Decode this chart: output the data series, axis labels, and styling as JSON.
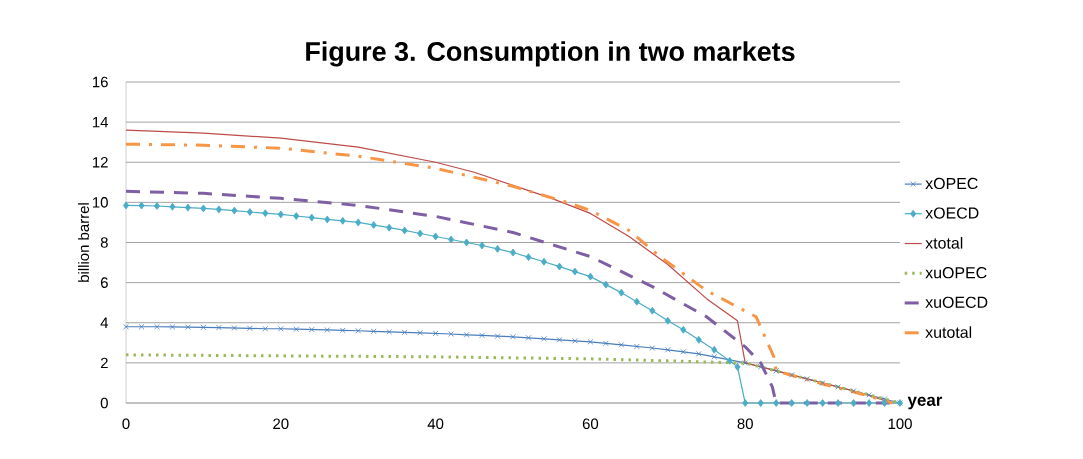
{
  "chart_data": {
    "type": "line",
    "title": "Figure 3. Consumption in two markets",
    "xlabel": "year",
    "ylabel": "billion barrel",
    "xlim": [
      0,
      100
    ],
    "xticks": [
      0,
      20,
      40,
      60,
      80,
      100
    ],
    "ylim": [
      0,
      16
    ],
    "yticks": [
      0,
      2,
      4,
      6,
      8,
      10,
      12,
      14,
      16
    ],
    "grid": "y",
    "legend": "right",
    "series": [
      {
        "name": "xOPEC",
        "color": "#4a7ebb",
        "marker": "cross",
        "line_style": "solid",
        "x": [
          0,
          2,
          4,
          6,
          8,
          10,
          12,
          14,
          16,
          18,
          20,
          22,
          24,
          26,
          28,
          30,
          32,
          34,
          36,
          38,
          40,
          42,
          44,
          46,
          48,
          50,
          52,
          54,
          56,
          58,
          60,
          62,
          64,
          66,
          68,
          70,
          72,
          74,
          76,
          80,
          82,
          84,
          86,
          88,
          90,
          92,
          94,
          96,
          98,
          100
        ],
        "values": [
          3.8,
          3.8,
          3.8,
          3.79,
          3.78,
          3.77,
          3.76,
          3.74,
          3.72,
          3.7,
          3.7,
          3.68,
          3.66,
          3.64,
          3.62,
          3.6,
          3.57,
          3.55,
          3.52,
          3.5,
          3.47,
          3.44,
          3.4,
          3.37,
          3.33,
          3.3,
          3.25,
          3.2,
          3.15,
          3.1,
          3.05,
          2.97,
          2.9,
          2.82,
          2.74,
          2.65,
          2.55,
          2.45,
          2.3,
          2.0,
          1.8,
          1.6,
          1.4,
          1.2,
          1.0,
          0.8,
          0.6,
          0.4,
          0.2,
          0
        ]
      },
      {
        "name": "xOECD",
        "color": "#4bacc6",
        "marker": "diamond",
        "line_style": "solid",
        "x": [
          0,
          2,
          4,
          6,
          8,
          10,
          12,
          14,
          16,
          18,
          20,
          22,
          24,
          26,
          28,
          30,
          32,
          34,
          36,
          38,
          40,
          42,
          44,
          46,
          48,
          50,
          52,
          54,
          56,
          58,
          60,
          62,
          64,
          66,
          68,
          70,
          72,
          74,
          76,
          78,
          79,
          80,
          82,
          84,
          86,
          88,
          90,
          92,
          94,
          96,
          98,
          100
        ],
        "values": [
          9.85,
          9.84,
          9.82,
          9.78,
          9.74,
          9.7,
          9.65,
          9.59,
          9.52,
          9.46,
          9.4,
          9.32,
          9.24,
          9.15,
          9.08,
          9.0,
          8.87,
          8.74,
          8.6,
          8.45,
          8.3,
          8.15,
          8.0,
          7.85,
          7.68,
          7.5,
          7.27,
          7.04,
          6.8,
          6.55,
          6.3,
          5.9,
          5.5,
          5.05,
          4.6,
          4.1,
          3.65,
          3.15,
          2.65,
          2.1,
          1.8,
          0,
          0,
          0,
          0,
          0,
          0,
          0,
          0,
          0,
          0,
          0
        ]
      },
      {
        "name": "xtotal",
        "color": "#be4b48",
        "marker": "none",
        "line_style": "solid",
        "x": [
          0,
          10,
          20,
          30,
          40,
          45,
          50,
          55,
          60,
          65,
          70,
          75,
          79,
          80,
          85,
          90,
          95,
          99
        ],
        "values": [
          13.6,
          13.45,
          13.2,
          12.75,
          12.0,
          11.5,
          10.85,
          10.2,
          9.45,
          8.3,
          6.9,
          5.2,
          4.1,
          2.0,
          1.5,
          1.0,
          0.5,
          0
        ]
      },
      {
        "name": "xuOPEC",
        "color": "#9bbb59",
        "marker": "none",
        "line_style": "dotted",
        "x": [
          0,
          20,
          40,
          60,
          70,
          79,
          80,
          90,
          100
        ],
        "values": [
          2.4,
          2.35,
          2.3,
          2.2,
          2.1,
          2.0,
          2.0,
          1.0,
          0
        ]
      },
      {
        "name": "xuOECD",
        "color": "#7f5fa3",
        "marker": "none",
        "line_style": "dashed",
        "x": [
          0,
          10,
          20,
          30,
          40,
          50,
          60,
          68,
          75,
          80,
          82,
          83.5,
          84,
          90,
          100
        ],
        "values": [
          10.55,
          10.45,
          10.2,
          9.85,
          9.3,
          8.5,
          7.3,
          5.8,
          4.3,
          2.8,
          2.0,
          0.8,
          0,
          0,
          0
        ]
      },
      {
        "name": "xutotal",
        "color": "#f79646",
        "marker": "none",
        "line_style": "dashdot",
        "x": [
          0,
          10,
          20,
          30,
          40,
          50,
          57,
          60,
          65,
          69,
          75,
          81.4,
          83.7,
          84,
          90,
          95,
          99
        ],
        "values": [
          12.9,
          12.85,
          12.7,
          12.3,
          11.7,
          10.8,
          10.0,
          9.6,
          8.6,
          7.3,
          5.6,
          4.3,
          2.3,
          1.6,
          0.95,
          0.45,
          0
        ]
      }
    ]
  }
}
